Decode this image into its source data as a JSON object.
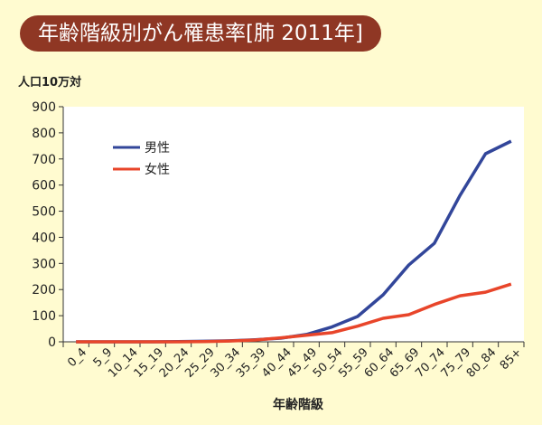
{
  "chart_data": {
    "type": "line",
    "title": "年齢階級別がん罹患率[肺 2011年]",
    "ylabel": "人口10万対",
    "xlabel": "年齢階級",
    "ylim": [
      0,
      900
    ],
    "yticks": [
      0,
      100,
      200,
      300,
      400,
      500,
      600,
      700,
      800,
      900
    ],
    "categories": [
      "0_4",
      "5_9",
      "10_14",
      "15_19",
      "20_24",
      "25_29",
      "30_34",
      "35_39",
      "40_44",
      "45_49",
      "50_54",
      "55_59",
      "60_64",
      "65_69",
      "70_74",
      "75_79",
      "80_84",
      "85+"
    ],
    "series": [
      {
        "name": "男性",
        "color": "#32469a",
        "values": [
          0,
          0,
          0,
          0,
          1,
          2,
          4,
          8,
          14,
          28,
          57,
          97,
          180,
          294,
          377,
          560,
          720,
          768
        ]
      },
      {
        "name": "女性",
        "color": "#e8452a",
        "values": [
          0,
          0,
          0,
          0,
          0,
          1,
          3,
          7,
          15,
          25,
          35,
          60,
          90,
          104,
          143,
          176,
          190,
          221
        ]
      }
    ],
    "legend": "top-left",
    "grid": false
  }
}
